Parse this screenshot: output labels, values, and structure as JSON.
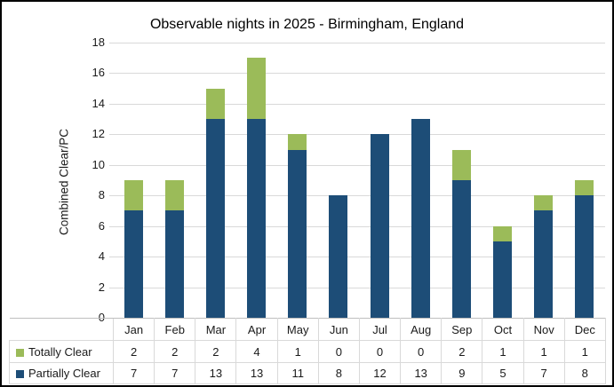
{
  "chart": {
    "title": "Observable nights in 2025 - Birmingham, England",
    "y_axis_label": "Combined Clear/PC"
  },
  "chart_data": {
    "type": "bar",
    "stacked": true,
    "title": "Observable nights in 2025 - Birmingham, England",
    "xlabel": "",
    "ylabel": "Combined Clear/PC",
    "categories": [
      "Jan",
      "Feb",
      "Mar",
      "Apr",
      "May",
      "Jun",
      "Jul",
      "Aug",
      "Sep",
      "Oct",
      "Nov",
      "Dec"
    ],
    "series": [
      {
        "name": "Totally Clear",
        "color": "#9bbb59",
        "stack_position": "top",
        "values": [
          2,
          2,
          2,
          4,
          1,
          0,
          0,
          0,
          2,
          1,
          1,
          1
        ]
      },
      {
        "name": "Partially Clear",
        "color": "#1d4d77",
        "stack_position": "bottom",
        "values": [
          7,
          7,
          13,
          13,
          11,
          8,
          12,
          13,
          9,
          5,
          7,
          8
        ]
      }
    ],
    "stack_totals": [
      9,
      9,
      15,
      17,
      12,
      8,
      12,
      13,
      11,
      6,
      8,
      9
    ],
    "ylim": [
      0,
      18
    ],
    "ytick_step": 2,
    "ytick_labels": [
      "0",
      "2",
      "4",
      "6",
      "8",
      "10",
      "12",
      "14",
      "16",
      "18"
    ],
    "grid": "horizontal",
    "legend_position": "data-table-left",
    "data_table_shown": true
  },
  "colors": {
    "totally_clear": "#9bbb59",
    "partially_clear": "#1d4d77",
    "gridline": "#d9d9d9",
    "axis_line": "#bfbfbf",
    "outer_border": "#000000",
    "background": "#ffffff",
    "text": "#1a1a1a"
  }
}
